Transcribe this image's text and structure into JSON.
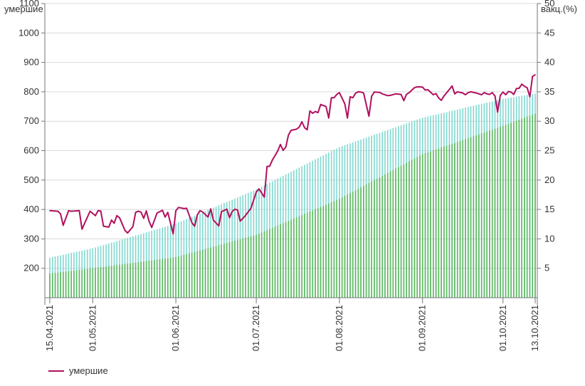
{
  "chart_data": {
    "type": "line",
    "ylabel": "умершие",
    "y2label": "вакц.(%)",
    "ylim": [
      100,
      1100
    ],
    "y2lim": [
      0,
      50
    ],
    "yticks": [
      200,
      300,
      400,
      500,
      600,
      700,
      800,
      900,
      1000,
      1100
    ],
    "y2ticks": [
      5,
      10,
      15,
      20,
      25,
      30,
      35,
      40,
      45,
      50
    ],
    "grid": true,
    "legend": "bottom-left",
    "x_start": "2021-04-15",
    "x_end": "2021-10-13",
    "xtick_labels": [
      "15.04.2021",
      "01.05.2021",
      "01.06.2021",
      "01.07.2021",
      "01.08.2021",
      "01.09.2021",
      "01.10.2021",
      "13.10.2021"
    ],
    "xtick_dates": [
      "2021-04-15",
      "2021-05-01",
      "2021-06-01",
      "2021-07-01",
      "2021-08-01",
      "2021-09-01",
      "2021-10-01",
      "2021-10-13"
    ],
    "series": [
      {
        "name": "умершие",
        "color": "#b0105f",
        "axis": "left",
        "kind": "line",
        "points": [
          [
            "2021-04-15",
            396
          ],
          [
            "2021-04-18",
            394
          ],
          [
            "2021-04-19",
            385
          ],
          [
            "2021-04-20",
            346
          ],
          [
            "2021-04-22",
            396
          ],
          [
            "2021-04-23",
            394
          ],
          [
            "2021-04-26",
            396
          ],
          [
            "2021-04-27",
            333
          ],
          [
            "2021-04-30",
            394
          ],
          [
            "2021-05-02",
            379
          ],
          [
            "2021-05-03",
            396
          ],
          [
            "2021-05-04",
            395
          ],
          [
            "2021-05-05",
            343
          ],
          [
            "2021-05-07",
            340
          ],
          [
            "2021-05-08",
            364
          ],
          [
            "2021-05-09",
            353
          ],
          [
            "2021-05-10",
            379
          ],
          [
            "2021-05-11",
            372
          ],
          [
            "2021-05-13",
            329
          ],
          [
            "2021-05-14",
            320
          ],
          [
            "2021-05-16",
            342
          ],
          [
            "2021-05-17",
            390
          ],
          [
            "2021-05-18",
            394
          ],
          [
            "2021-05-19",
            391
          ],
          [
            "2021-05-20",
            370
          ],
          [
            "2021-05-21",
            395
          ],
          [
            "2021-05-22",
            360
          ],
          [
            "2021-05-23",
            339
          ],
          [
            "2021-05-25",
            388
          ],
          [
            "2021-05-27",
            397
          ],
          [
            "2021-05-28",
            374
          ],
          [
            "2021-05-29",
            390
          ],
          [
            "2021-05-31",
            317
          ],
          [
            "2021-06-01",
            396
          ],
          [
            "2021-06-02",
            407
          ],
          [
            "2021-06-04",
            403
          ],
          [
            "2021-06-05",
            404
          ],
          [
            "2021-06-07",
            355
          ],
          [
            "2021-06-08",
            343
          ],
          [
            "2021-06-09",
            381
          ],
          [
            "2021-06-10",
            396
          ],
          [
            "2021-06-11",
            391
          ],
          [
            "2021-06-13",
            374
          ],
          [
            "2021-06-14",
            402
          ],
          [
            "2021-06-15",
            364
          ],
          [
            "2021-06-17",
            344
          ],
          [
            "2021-06-18",
            392
          ],
          [
            "2021-06-20",
            401
          ],
          [
            "2021-06-21",
            372
          ],
          [
            "2021-06-22",
            393
          ],
          [
            "2021-06-23",
            401
          ],
          [
            "2021-06-24",
            398
          ],
          [
            "2021-06-25",
            360
          ],
          [
            "2021-06-27",
            380
          ],
          [
            "2021-06-29",
            404
          ],
          [
            "2021-07-01",
            459
          ],
          [
            "2021-07-02",
            470
          ],
          [
            "2021-07-04",
            442
          ],
          [
            "2021-07-05",
            546
          ],
          [
            "2021-07-06",
            547
          ],
          [
            "2021-07-07",
            568
          ],
          [
            "2021-07-09",
            599
          ],
          [
            "2021-07-10",
            621
          ],
          [
            "2021-07-11",
            601
          ],
          [
            "2021-07-12",
            612
          ],
          [
            "2021-07-13",
            653
          ],
          [
            "2021-07-14",
            669
          ],
          [
            "2021-07-16",
            673
          ],
          [
            "2021-07-17",
            680
          ],
          [
            "2021-07-18",
            698
          ],
          [
            "2021-07-19",
            678
          ],
          [
            "2021-07-20",
            671
          ],
          [
            "2021-07-21",
            735
          ],
          [
            "2021-07-22",
            727
          ],
          [
            "2021-07-23",
            733
          ],
          [
            "2021-07-24",
            729
          ],
          [
            "2021-07-25",
            757
          ],
          [
            "2021-07-27",
            750
          ],
          [
            "2021-07-28",
            711
          ],
          [
            "2021-07-29",
            780
          ],
          [
            "2021-07-30",
            780
          ],
          [
            "2021-07-31",
            791
          ],
          [
            "2021-08-01",
            797
          ],
          [
            "2021-08-03",
            759
          ],
          [
            "2021-08-04",
            711
          ],
          [
            "2021-08-05",
            783
          ],
          [
            "2021-08-06",
            780
          ],
          [
            "2021-08-07",
            795
          ],
          [
            "2021-08-08",
            800
          ],
          [
            "2021-08-09",
            799
          ],
          [
            "2021-08-10",
            796
          ],
          [
            "2021-08-12",
            717
          ],
          [
            "2021-08-13",
            785
          ],
          [
            "2021-08-14",
            799
          ],
          [
            "2021-08-16",
            798
          ],
          [
            "2021-08-17",
            793
          ],
          [
            "2021-08-19",
            787
          ],
          [
            "2021-08-20",
            788
          ],
          [
            "2021-08-22",
            793
          ],
          [
            "2021-08-24",
            791
          ],
          [
            "2021-08-25",
            770
          ],
          [
            "2021-08-26",
            791
          ],
          [
            "2021-08-27",
            797
          ],
          [
            "2021-08-29",
            814
          ],
          [
            "2021-08-30",
            817
          ],
          [
            "2021-09-01",
            816
          ],
          [
            "2021-09-02",
            806
          ],
          [
            "2021-09-03",
            807
          ],
          [
            "2021-09-05",
            790
          ],
          [
            "2021-09-06",
            794
          ],
          [
            "2021-09-07",
            779
          ],
          [
            "2021-09-08",
            771
          ],
          [
            "2021-09-09",
            786
          ],
          [
            "2021-09-11",
            808
          ],
          [
            "2021-09-12",
            820
          ],
          [
            "2021-09-13",
            793
          ],
          [
            "2021-09-14",
            800
          ],
          [
            "2021-09-16",
            796
          ],
          [
            "2021-09-17",
            790
          ],
          [
            "2021-09-18",
            797
          ],
          [
            "2021-09-19",
            800
          ],
          [
            "2021-09-21",
            796
          ],
          [
            "2021-09-23",
            790
          ],
          [
            "2021-09-24",
            797
          ],
          [
            "2021-09-25",
            793
          ],
          [
            "2021-09-26",
            791
          ],
          [
            "2021-09-27",
            797
          ],
          [
            "2021-09-28",
            786
          ],
          [
            "2021-09-29",
            731
          ],
          [
            "2021-09-30",
            788
          ],
          [
            "2021-10-01",
            799
          ],
          [
            "2021-10-02",
            790
          ],
          [
            "2021-10-03",
            801
          ],
          [
            "2021-10-04",
            799
          ],
          [
            "2021-10-05",
            791
          ],
          [
            "2021-10-06",
            811
          ],
          [
            "2021-10-07",
            812
          ],
          [
            "2021-10-08",
            826
          ],
          [
            "2021-10-09",
            819
          ],
          [
            "2021-10-10",
            814
          ],
          [
            "2021-10-11",
            783
          ],
          [
            "2021-10-12",
            852
          ],
          [
            "2021-10-13",
            858
          ]
        ]
      },
      {
        "name": "",
        "color": "#7ed8d0",
        "axis": "right",
        "kind": "bar",
        "points": [
          [
            "2021-04-15",
            6.8
          ],
          [
            "2021-05-01",
            8.4
          ],
          [
            "2021-06-01",
            12.6
          ],
          [
            "2021-07-01",
            18.4
          ],
          [
            "2021-08-01",
            25.6
          ],
          [
            "2021-09-01",
            30.6
          ],
          [
            "2021-10-01",
            33.8
          ],
          [
            "2021-10-13",
            34.7
          ]
        ]
      },
      {
        "name": "",
        "color": "#5cb85c",
        "axis": "right",
        "kind": "bar",
        "points": [
          [
            "2021-04-15",
            4.1
          ],
          [
            "2021-05-01",
            5.0
          ],
          [
            "2021-06-01",
            6.9
          ],
          [
            "2021-07-01",
            10.7
          ],
          [
            "2021-08-01",
            16.8
          ],
          [
            "2021-09-01",
            24.4
          ],
          [
            "2021-10-01",
            29.2
          ],
          [
            "2021-10-13",
            31.3
          ]
        ]
      }
    ]
  }
}
